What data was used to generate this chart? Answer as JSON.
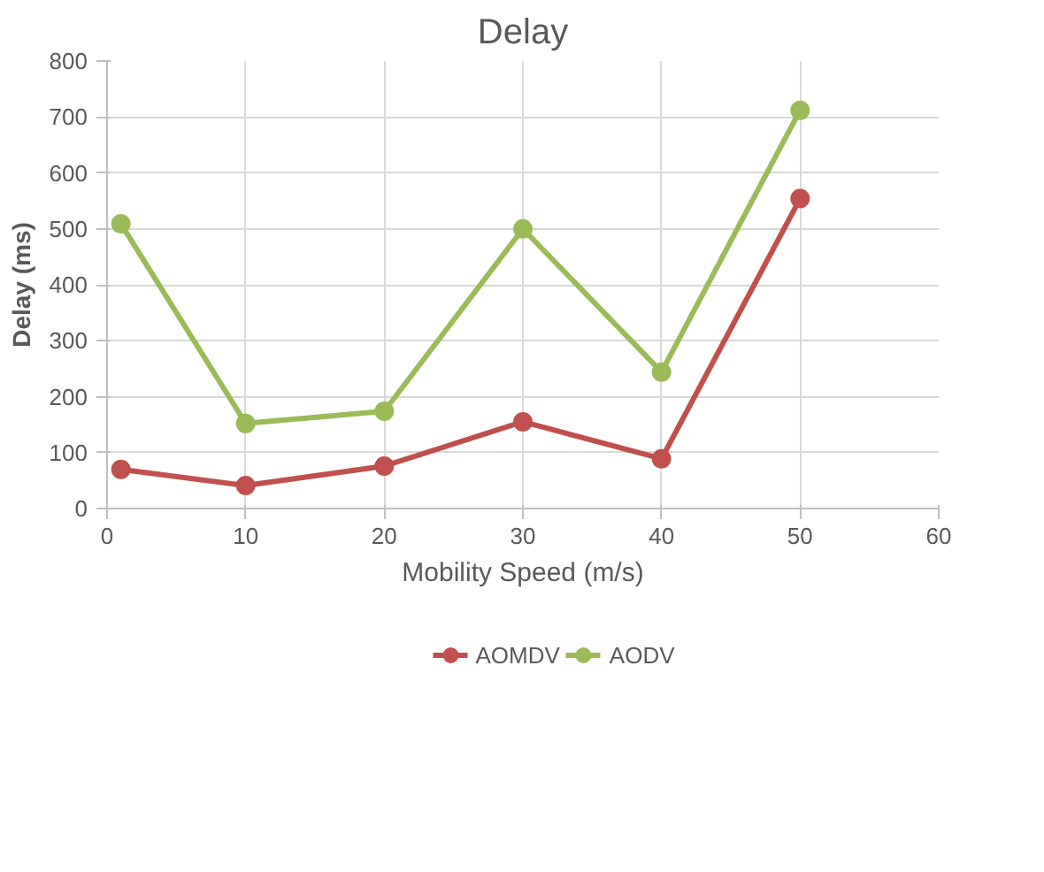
{
  "chart_data": {
    "type": "line",
    "title": "Delay",
    "xlabel": "Mobility Speed (m/s)",
    "ylabel": "Delay (ms)",
    "x": [
      1,
      10,
      20,
      30,
      40,
      50
    ],
    "series": [
      {
        "name": "AOMDV",
        "color": "#c0504d",
        "values": [
          70,
          41,
          76,
          155,
          89,
          554
        ]
      },
      {
        "name": "AODV",
        "color": "#9bbb59",
        "values": [
          509,
          152,
          174,
          500,
          244,
          712
        ]
      }
    ],
    "xlim": [
      0,
      60
    ],
    "xticks": [
      0,
      10,
      20,
      30,
      40,
      50,
      60
    ],
    "ylim": [
      0,
      800
    ],
    "yticks": [
      0,
      100,
      200,
      300,
      400,
      500,
      600,
      700,
      800
    ],
    "grid": true,
    "legend": "bottom",
    "marker": "circle",
    "line_style": "solid"
  }
}
